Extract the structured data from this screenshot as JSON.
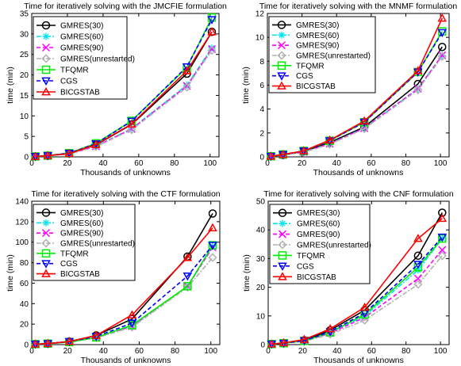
{
  "chart_data": [
    {
      "type": "line",
      "title": "Time for iteratively solving with the JMCFIE formulation",
      "xlabel": "Thousands of unknowns",
      "ylabel": "time (min)",
      "xlim": [
        0,
        105
      ],
      "ylim": [
        0,
        35
      ],
      "xticks": [
        0,
        20,
        40,
        60,
        80,
        100
      ],
      "yticks": [
        0,
        5,
        10,
        15,
        20,
        25,
        30,
        35
      ],
      "grid": false,
      "legend": "top-left",
      "x": [
        2,
        9,
        21,
        36,
        56,
        87,
        101
      ],
      "series": [
        {
          "name": "GMRES(30)",
          "values": [
            0.1,
            0.3,
            0.8,
            2.9,
            7.9,
            20.3,
            30.5
          ]
        },
        {
          "name": "GMRES(60)",
          "values": [
            0.1,
            0.3,
            0.7,
            2.6,
            6.9,
            17.5,
            26.6
          ]
        },
        {
          "name": "GMRES(90)",
          "values": [
            0.1,
            0.3,
            0.7,
            2.6,
            6.8,
            17.3,
            26.3
          ]
        },
        {
          "name": "GMRES(unrestarted)",
          "values": [
            0.1,
            0.3,
            0.7,
            2.5,
            6.6,
            17.0,
            26.0
          ]
        },
        {
          "name": "TFQMR",
          "values": [
            0.1,
            0.3,
            0.9,
            3.3,
            8.8,
            21.8,
            34.0
          ]
        },
        {
          "name": "CGS",
          "values": [
            0.1,
            0.3,
            0.9,
            3.2,
            8.7,
            22.0,
            33.5
          ]
        },
        {
          "name": "BICGSTAB",
          "values": [
            0.1,
            0.3,
            0.8,
            3.0,
            8.0,
            21.0,
            30.5
          ]
        }
      ]
    },
    {
      "type": "line",
      "title": "Time for iteratively solving with the MNMF formulation",
      "xlabel": "Thousands of unknowns",
      "ylabel": "time (min)",
      "xlim": [
        0,
        105
      ],
      "ylim": [
        0,
        12
      ],
      "xticks": [
        0,
        20,
        40,
        60,
        80,
        100
      ],
      "yticks": [
        0,
        2,
        4,
        6,
        8,
        10,
        12
      ],
      "grid": false,
      "legend": "top-left",
      "x": [
        2,
        9,
        21,
        36,
        56,
        87,
        101
      ],
      "series": [
        {
          "name": "GMRES(30)",
          "values": [
            0.05,
            0.15,
            0.45,
            1.2,
            2.5,
            6.1,
            9.2
          ]
        },
        {
          "name": "GMRES(60)",
          "values": [
            0.05,
            0.15,
            0.4,
            1.1,
            2.4,
            5.7,
            8.5
          ]
        },
        {
          "name": "GMRES(90)",
          "values": [
            0.05,
            0.15,
            0.4,
            1.1,
            2.4,
            5.7,
            8.5
          ]
        },
        {
          "name": "GMRES(unrestarted)",
          "values": [
            0.05,
            0.15,
            0.4,
            1.05,
            2.35,
            5.6,
            8.4
          ]
        },
        {
          "name": "TFQMR",
          "values": [
            0.05,
            0.2,
            0.5,
            1.35,
            2.9,
            7.1,
            10.5
          ]
        },
        {
          "name": "CGS",
          "values": [
            0.05,
            0.2,
            0.5,
            1.35,
            2.9,
            7.1,
            10.4
          ]
        },
        {
          "name": "BICGSTAB",
          "values": [
            0.05,
            0.2,
            0.5,
            1.4,
            3.0,
            7.2,
            11.6
          ]
        }
      ]
    },
    {
      "type": "line",
      "title": "Time for iteratively solving with the CTF formulation",
      "xlabel": "Thousands of unknowns",
      "ylabel": "time (min)",
      "xlim": [
        0,
        105
      ],
      "ylim": [
        0,
        140
      ],
      "xticks": [
        0,
        20,
        40,
        60,
        80,
        100
      ],
      "yticks": [
        0,
        20,
        40,
        60,
        80,
        100,
        120,
        140
      ],
      "grid": false,
      "legend": "top-left",
      "x": [
        2,
        9,
        21,
        36,
        56,
        87,
        101
      ],
      "series": [
        {
          "name": "GMRES(30)",
          "values": [
            0.5,
            1,
            3,
            9,
            25,
            86,
            128
          ]
        },
        {
          "name": "GMRES(60)",
          "values": [
            0.5,
            1,
            2.5,
            7,
            18,
            57,
            96
          ]
        },
        {
          "name": "GMRES(90)",
          "values": [
            0.5,
            1,
            2.5,
            7,
            18,
            57,
            95
          ]
        },
        {
          "name": "GMRES(unrestarted)",
          "values": [
            0.5,
            1,
            2.5,
            6.5,
            17,
            56,
            85
          ]
        },
        {
          "name": "TFQMR",
          "values": [
            0.5,
            1,
            2.5,
            7,
            19,
            57,
            97
          ]
        },
        {
          "name": "CGS",
          "values": [
            0.5,
            1,
            3,
            8,
            21,
            67,
            97
          ]
        },
        {
          "name": "BICGSTAB",
          "values": [
            0.5,
            1,
            3,
            9,
            29,
            85,
            114
          ]
        }
      ]
    },
    {
      "type": "line",
      "title": "Time for iteratively solving with the CNF formulation",
      "xlabel": "Thousands of unknowns",
      "ylabel": "time (min)",
      "xlim": [
        0,
        105
      ],
      "ylim": [
        0,
        50
      ],
      "xticks": [
        0,
        20,
        40,
        60,
        80,
        100
      ],
      "yticks": [
        0,
        10,
        20,
        30,
        40,
        50
      ],
      "grid": false,
      "legend": "top-left",
      "x": [
        2,
        9,
        21,
        36,
        56,
        87,
        101
      ],
      "series": [
        {
          "name": "GMRES(30)",
          "values": [
            0.2,
            0.5,
            1.5,
            5,
            12,
            31,
            46
          ]
        },
        {
          "name": "GMRES(60)",
          "values": [
            0.2,
            0.5,
            1.3,
            4.2,
            10,
            26,
            37
          ]
        },
        {
          "name": "GMRES(90)",
          "values": [
            0.2,
            0.5,
            1.2,
            4,
            9.5,
            23,
            33
          ]
        },
        {
          "name": "GMRES(unrestarted)",
          "values": [
            0.2,
            0.5,
            1.1,
            3.6,
            8.5,
            21,
            31
          ]
        },
        {
          "name": "TFQMR",
          "values": [
            0.2,
            0.5,
            1.3,
            4.3,
            10.5,
            27,
            37
          ]
        },
        {
          "name": "CGS",
          "values": [
            0.2,
            0.5,
            1.4,
            4.5,
            11,
            28,
            37.5
          ]
        },
        {
          "name": "BICGSTAB",
          "values": [
            0.2,
            0.6,
            1.8,
            5.5,
            13,
            37,
            44
          ]
        }
      ]
    }
  ],
  "series_style": [
    {
      "color": "#000000",
      "dash": "solid",
      "marker": "circle"
    },
    {
      "color": "#00e5ee",
      "dash": "dashdot",
      "marker": "asterisk"
    },
    {
      "color": "#ff00ff",
      "dash": "dashed",
      "marker": "x"
    },
    {
      "color": "#b0b0b0",
      "dash": "dashdot",
      "marker": "diamond"
    },
    {
      "color": "#00ee00",
      "dash": "solid",
      "marker": "square"
    },
    {
      "color": "#0000ff",
      "dash": "dashed",
      "marker": "triangle-down"
    },
    {
      "color": "#ff0000",
      "dash": "solid",
      "marker": "triangle-up"
    }
  ]
}
